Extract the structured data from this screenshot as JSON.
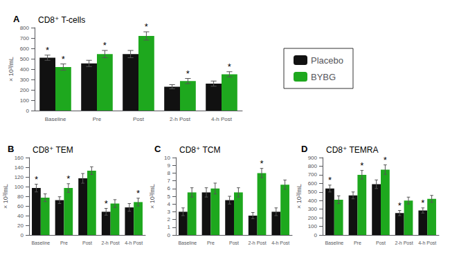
{
  "chart_data": [
    {
      "type": "bar",
      "panel_label": "A",
      "title": "CD8⁺ T-cells",
      "ylabel": "× 10³/mL",
      "categories": [
        "Baseline",
        "Pre",
        "Post",
        "2-h Post",
        "4-h Post"
      ],
      "series": [
        {
          "name": "Placebo",
          "color": "#111111",
          "values": [
            510,
            455,
            545,
            230,
            260
          ],
          "errors": [
            25,
            30,
            35,
            20,
            25
          ]
        },
        {
          "name": "BYBG",
          "color": "#1ea81e",
          "values": [
            420,
            545,
            720,
            285,
            350
          ],
          "errors": [
            30,
            35,
            40,
            25,
            25
          ]
        }
      ],
      "ylim": [
        0,
        800
      ],
      "yticks": [
        0,
        100,
        200,
        300,
        400,
        500,
        600,
        700,
        800
      ],
      "grid": false,
      "legend": "right",
      "annotations": [
        {
          "series": "Placebo",
          "category": "Baseline",
          "text": "*"
        },
        {
          "series": "BYBG",
          "category": "Baseline",
          "text": "*"
        },
        {
          "series": "BYBG",
          "category": "Pre",
          "text": "*"
        },
        {
          "series": "BYBG",
          "category": "Post",
          "text": "*"
        },
        {
          "series": "BYBG",
          "category": "2-h Post",
          "text": "*"
        },
        {
          "series": "BYBG",
          "category": "4-h Post",
          "text": "*"
        }
      ]
    },
    {
      "type": "bar",
      "panel_label": "B",
      "title": "CD8⁺ TEM",
      "ylabel": "× 10³/mL",
      "categories": [
        "Baseline",
        "Pre",
        "Post",
        "2-h Post",
        "4-h Post"
      ],
      "series": [
        {
          "name": "Placebo",
          "color": "#111111",
          "values": [
            97,
            72,
            117,
            48,
            57
          ],
          "errors": [
            8,
            7,
            10,
            7,
            8
          ]
        },
        {
          "name": "BYBG",
          "color": "#1ea81e",
          "values": [
            77,
            97,
            133,
            65,
            68
          ],
          "errors": [
            8,
            9,
            8,
            8,
            8
          ]
        }
      ],
      "ylim": [
        0,
        160
      ],
      "yticks": [
        0,
        20,
        40,
        60,
        80,
        100,
        120,
        140,
        160
      ],
      "grid": false,
      "annotations": [
        {
          "series": "Placebo",
          "category": "Baseline",
          "text": "*"
        },
        {
          "series": "Placebo",
          "category": "2-h Post",
          "text": "*"
        },
        {
          "series": "BYBG",
          "category": "Pre",
          "text": "*"
        },
        {
          "series": "BYBG",
          "category": "4-h Post",
          "text": "*"
        }
      ]
    },
    {
      "type": "bar",
      "panel_label": "C",
      "title": "CD8⁺ TCM",
      "ylabel": "× 10³/mL",
      "categories": [
        "Baseline",
        "Pre",
        "Post",
        "2-h Post",
        "4-h Post"
      ],
      "series": [
        {
          "name": "Placebo",
          "color": "#111111",
          "values": [
            3.0,
            5.5,
            4.5,
            2.5,
            3.0
          ],
          "errors": [
            0.5,
            0.6,
            0.5,
            0.4,
            0.5
          ]
        },
        {
          "name": "BYBG",
          "color": "#1ea81e",
          "values": [
            5.5,
            6.0,
            5.5,
            8.0,
            6.5
          ],
          "errors": [
            0.6,
            0.7,
            0.6,
            0.6,
            0.6
          ]
        }
      ],
      "ylim": [
        0,
        10
      ],
      "yticks": [
        0,
        1,
        2,
        3,
        4,
        5,
        6,
        7,
        8,
        9,
        10
      ],
      "grid": false,
      "annotations": [
        {
          "series": "BYBG",
          "category": "2-h Post",
          "text": "*"
        }
      ]
    },
    {
      "type": "bar",
      "panel_label": "D",
      "title": "CD8⁺ TEMRA",
      "ylabel": "× 10³/mL",
      "categories": [
        "Baseline",
        "Pre",
        "Post",
        "2-h Post",
        "4-h Post"
      ],
      "series": [
        {
          "name": "Placebo",
          "color": "#111111",
          "values": [
            540,
            460,
            590,
            255,
            285
          ],
          "errors": [
            40,
            40,
            50,
            30,
            30
          ]
        },
        {
          "name": "BYBG",
          "color": "#1ea81e",
          "values": [
            410,
            700,
            760,
            400,
            420
          ],
          "errors": [
            45,
            50,
            55,
            40,
            40
          ]
        }
      ],
      "ylim": [
        0,
        900
      ],
      "yticks": [
        0,
        100,
        200,
        300,
        400,
        500,
        600,
        700,
        800,
        900
      ],
      "grid": false,
      "annotations": [
        {
          "series": "Placebo",
          "category": "Baseline",
          "text": "*"
        },
        {
          "series": "Placebo",
          "category": "2-h Post",
          "text": "*"
        },
        {
          "series": "Placebo",
          "category": "4-h Post",
          "text": "*"
        },
        {
          "series": "BYBG",
          "category": "Pre",
          "text": "*"
        },
        {
          "series": "BYBG",
          "category": "Post",
          "text": "*"
        }
      ]
    }
  ]
}
